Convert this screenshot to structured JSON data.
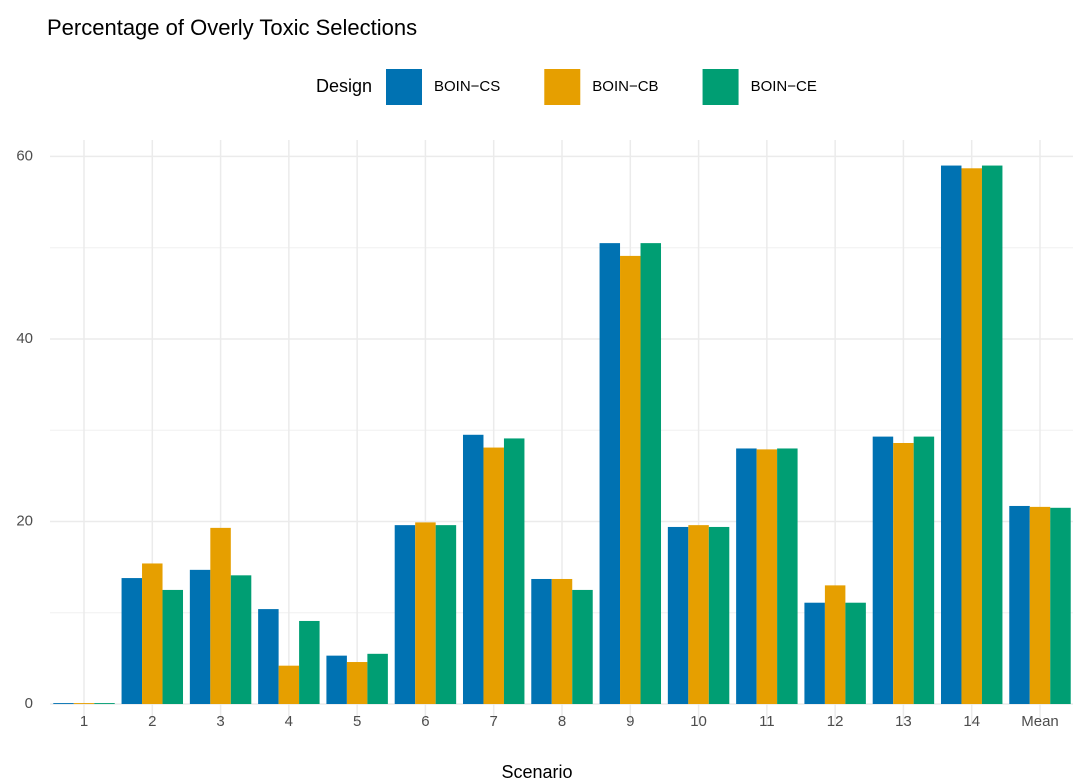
{
  "chart_data": {
    "type": "bar",
    "title": "Percentage of Overly Toxic Selections",
    "x_label": "Scenario",
    "legend_title": "Design",
    "categories": [
      "1",
      "2",
      "3",
      "4",
      "5",
      "6",
      "7",
      "8",
      "9",
      "10",
      "11",
      "12",
      "13",
      "14",
      "Mean"
    ],
    "series": [
      {
        "name": "BOIN−CS",
        "color": "#0072B2",
        "values": [
          0.1,
          13.8,
          14.7,
          10.4,
          5.3,
          19.6,
          29.5,
          13.7,
          50.5,
          19.4,
          28.0,
          11.1,
          29.3,
          59.0,
          21.7
        ]
      },
      {
        "name": "BOIN−CB",
        "color": "#E69F00",
        "values": [
          0.1,
          15.4,
          19.3,
          4.2,
          4.6,
          19.9,
          28.1,
          13.7,
          49.1,
          19.6,
          27.9,
          13.0,
          28.6,
          58.7,
          21.6
        ]
      },
      {
        "name": "BOIN−CE",
        "color": "#009E73",
        "values": [
          0.1,
          12.5,
          14.1,
          9.1,
          5.5,
          19.6,
          29.1,
          12.5,
          50.5,
          19.4,
          28.0,
          11.1,
          29.3,
          59.0,
          21.5
        ]
      }
    ],
    "ylim": [
      -2.3,
      61.8
    ],
    "yticks": [
      0,
      20,
      40,
      60
    ],
    "grid": true,
    "legend_position": "top"
  }
}
